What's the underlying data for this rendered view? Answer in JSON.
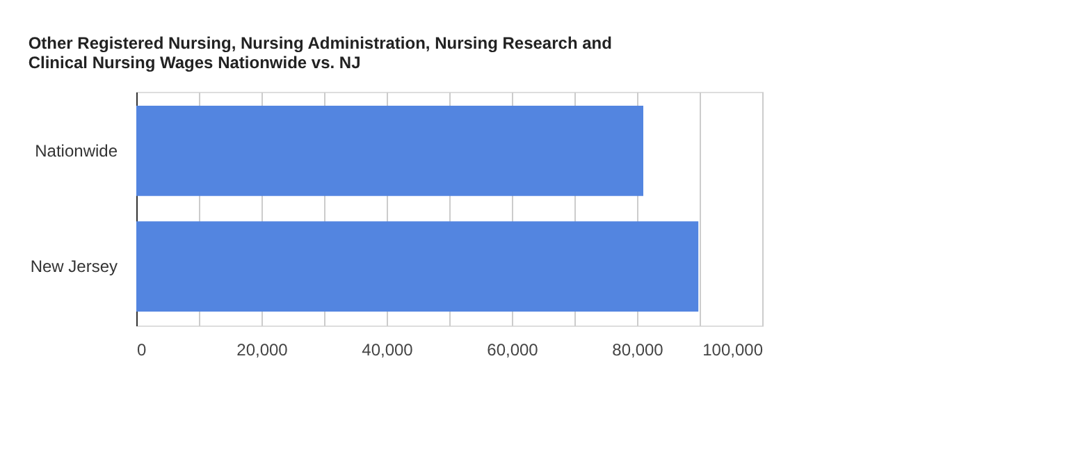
{
  "chart_data": {
    "type": "bar",
    "orientation": "horizontal",
    "title": [
      "Other Registered Nursing, Nursing Administration, Nursing Research and",
      "Clinical Nursing Wages Nationwide vs. NJ"
    ],
    "categories": [
      "Nationwide",
      "New Jersey"
    ],
    "values": [
      81000,
      89800
    ],
    "color": "#5385e0",
    "xlim": [
      0,
      100000
    ],
    "xticks": [
      0,
      {
        "value": 10000,
        "label": null
      },
      {
        "value": 20000,
        "label": "20,000"
      },
      {
        "value": 30000,
        "label": null
      },
      {
        "value": 40000,
        "label": "40,000"
      },
      {
        "value": 50000,
        "label": null
      },
      {
        "value": 60000,
        "label": "60,000"
      },
      {
        "value": 70000,
        "label": null
      },
      {
        "value": 80000,
        "label": "80,000"
      },
      {
        "value": 90000,
        "label": null
      },
      {
        "value": 100000,
        "label": "100,000"
      }
    ],
    "grid": "x"
  }
}
